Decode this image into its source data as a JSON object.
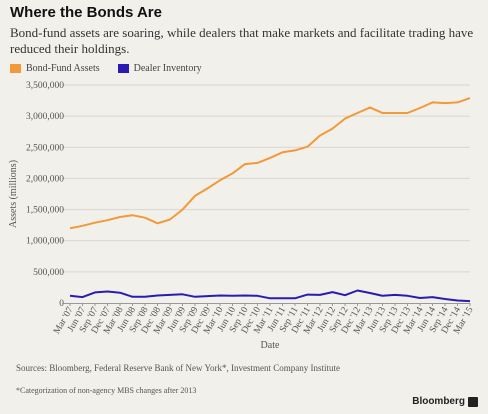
{
  "header": {
    "title": "Where the Bonds Are",
    "subtitle": "Bond-fund assets are soaring, while dealers that make markets and facilitate trading have reduced their holdings."
  },
  "colors": {
    "bond_fund": "#f2993a",
    "dealer": "#2a1bb3",
    "grid": "#d8d6d0",
    "axis": "#999999"
  },
  "chart_data": {
    "type": "line",
    "xlabel": "Date",
    "ylabel": "Assets (millions)",
    "ylim": [
      0,
      3500000
    ],
    "y_ticks": [
      "0",
      "500,000",
      "1,000,000",
      "1,500,000",
      "2,000,000",
      "2,500,000",
      "3,000,000",
      "3,500,000"
    ],
    "x": [
      "Mar '07",
      "Jun '07",
      "Sep '07",
      "Dec '07",
      "Mar '08",
      "Jun '08",
      "Sep '08",
      "Dec '08",
      "Mar '09",
      "Jun '09",
      "Sep '09",
      "Dec '09",
      "Mar '10",
      "Jun '10",
      "Sep '10",
      "Dec '10",
      "Mar '11",
      "Jun '11",
      "Sep '11",
      "Dec '11",
      "Mar '12",
      "Jun '12",
      "Sep '12",
      "Dec '12",
      "Mar '13",
      "Jun '13",
      "Sep '13",
      "Dec '13",
      "Mar '14",
      "Jun '14",
      "Sep '14",
      "Dec '14",
      "Mar '15"
    ],
    "grid": true,
    "legend": "top-left",
    "series": [
      {
        "name": "Bond-Fund Assets",
        "values": [
          1200000,
          1240000,
          1290000,
          1330000,
          1380000,
          1410000,
          1370000,
          1280000,
          1340000,
          1500000,
          1720000,
          1840000,
          1970000,
          2080000,
          2230000,
          2250000,
          2330000,
          2420000,
          2450000,
          2510000,
          2690000,
          2800000,
          2960000,
          3050000,
          3140000,
          3050000,
          3050000,
          3050000,
          3130000,
          3220000,
          3210000,
          3220000,
          3290000
        ]
      },
      {
        "name": "Dealer Inventory",
        "values": [
          115000,
          95000,
          170000,
          185000,
          165000,
          100000,
          100000,
          120000,
          130000,
          140000,
          100000,
          110000,
          120000,
          115000,
          120000,
          115000,
          75000,
          75000,
          75000,
          135000,
          130000,
          175000,
          125000,
          200000,
          160000,
          115000,
          130000,
          115000,
          80000,
          95000,
          65000,
          40000,
          30000
        ]
      }
    ]
  },
  "footer": {
    "sources": "Sources: Bloomberg, Federal Reserve Bank of New York*, Investment Company Institute",
    "footnote": "*Categorization of non-agency MBS changes after 2013",
    "brand": "Bloomberg"
  }
}
